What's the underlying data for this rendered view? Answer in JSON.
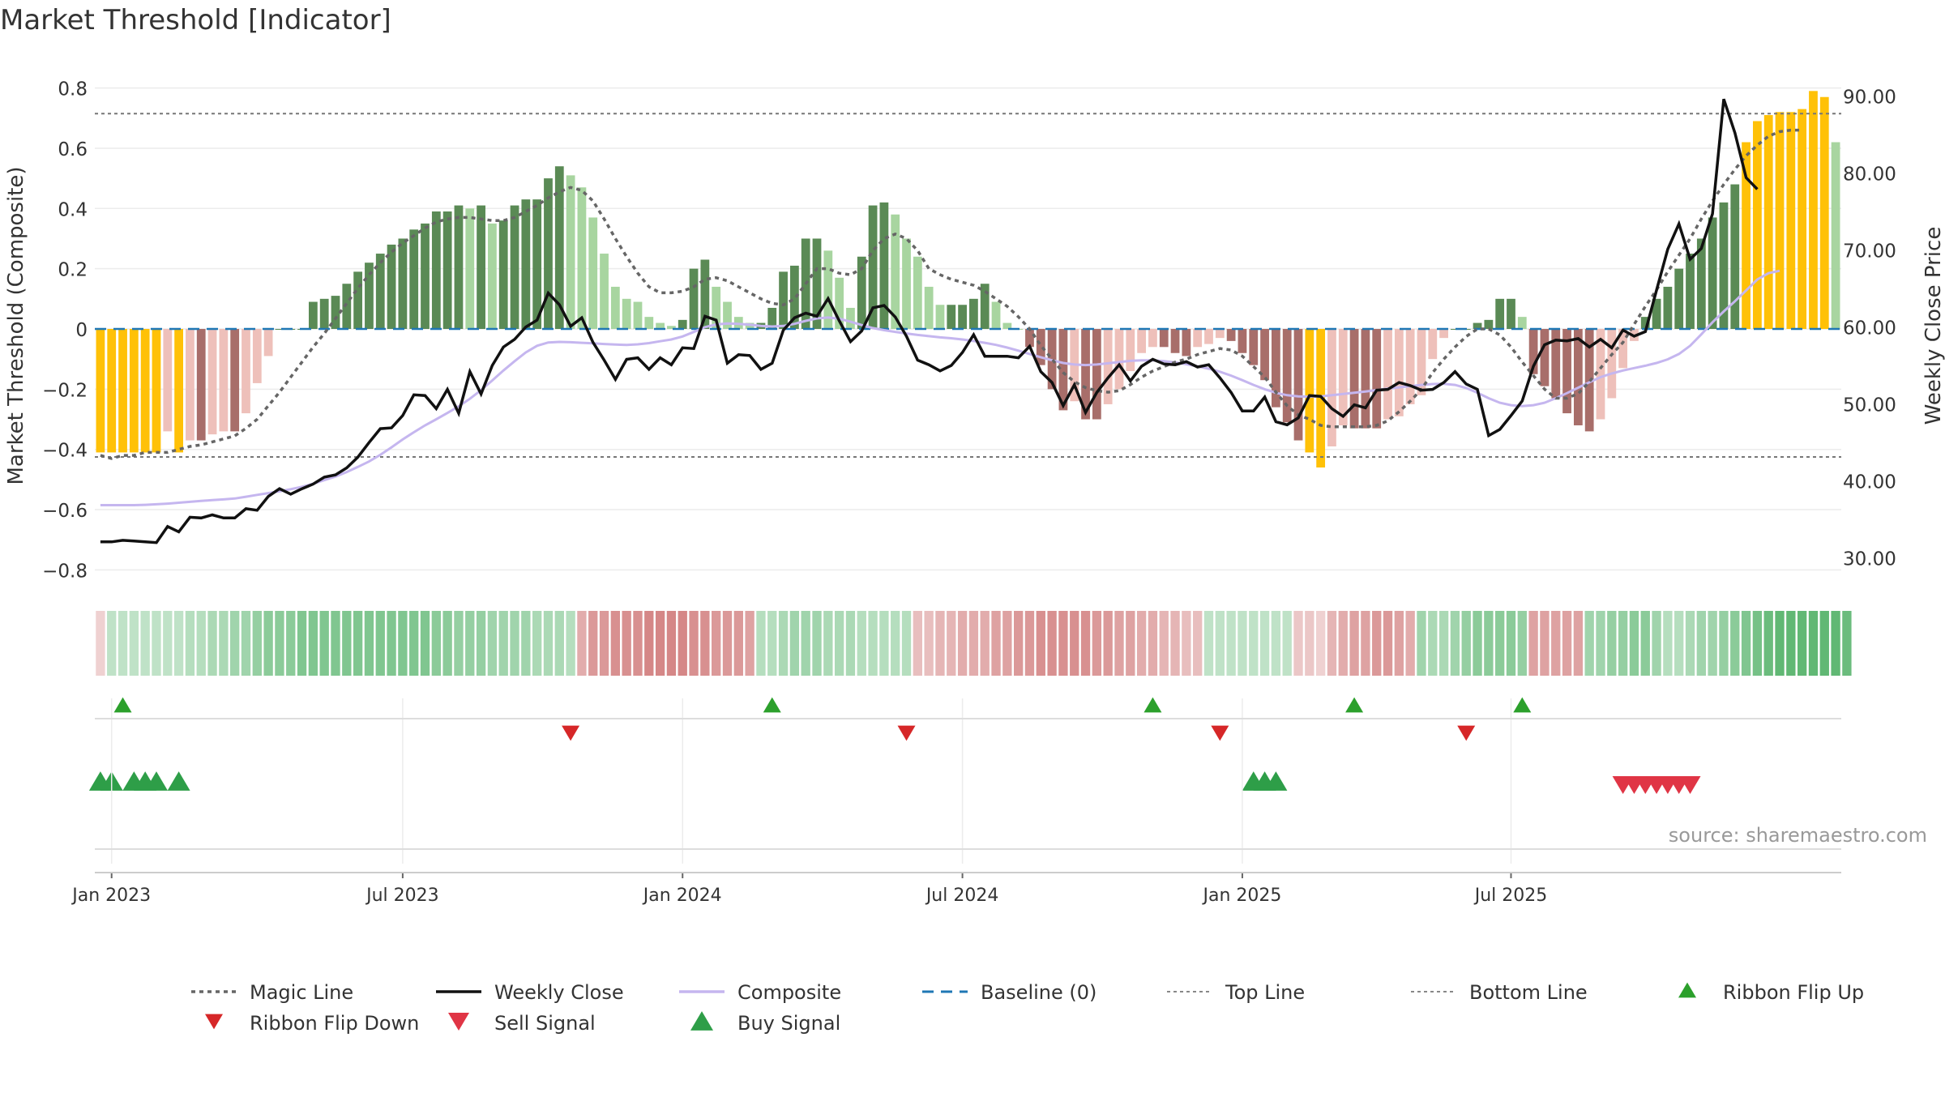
{
  "chart_data": {
    "type": "bar+line",
    "title": "Market Threshold [Indicator]",
    "ylabel_left": "Market Threshold (Composite)",
    "ylabel_right": "Weekly Close Price",
    "ylim_left": [
      -0.85,
      0.85
    ],
    "ylim_right": [
      26.5,
      93.0
    ],
    "yticks_left": [
      "0.8",
      "0.6",
      "0.4",
      "0.2",
      "0",
      "−0.2",
      "−0.4",
      "−0.6",
      "−0.8"
    ],
    "yticks_right": [
      "90.00",
      "80.00",
      "70.00",
      "60.00",
      "50.00",
      "40.00",
      "30.00"
    ],
    "x_ticks": [
      "Jan 2023",
      "Jul 2023",
      "Jan 2024",
      "Jul 2024",
      "Jan 2025",
      "Jul 2025"
    ],
    "source": "source: sharemaestro.com",
    "grid": true,
    "legend_position": "bottom",
    "lines": {
      "top_line": 0.715,
      "bottom_line": -0.425
    },
    "colors": {
      "pos_dark": "#5a8a55",
      "pos_light": "#a8d5a0",
      "neg_dark": "#a86e6a",
      "neg_light": "#eec0ba",
      "extreme": "#ffc107",
      "close": "#111111",
      "composite": "#c5b6ef",
      "magic": "#666666",
      "baseline": "#1f77b4",
      "flip_up": "#2ca02c",
      "flip_down": "#d62728",
      "sell": "#e03545",
      "buy": "#2e9e48"
    },
    "legend": [
      {
        "label": "Magic Line",
        "kind": "dotted",
        "color": "#666666"
      },
      {
        "label": "Weekly Close",
        "kind": "solid",
        "color": "#111111"
      },
      {
        "label": "Composite",
        "kind": "solid",
        "color": "#c5b6ef"
      },
      {
        "label": "Baseline (0)",
        "kind": "dashed",
        "color": "#1f77b4"
      },
      {
        "label": "Top Line",
        "kind": "dotted-light",
        "color": "#888888"
      },
      {
        "label": "Bottom Line",
        "kind": "dotted-light",
        "color": "#888888"
      },
      {
        "label": "Ribbon Flip Up",
        "kind": "tri-up",
        "color": "#2ca02c"
      },
      {
        "label": "Ribbon Flip Down",
        "kind": "tri-down",
        "color": "#d62728"
      },
      {
        "label": "Sell Signal",
        "kind": "tri-down-big",
        "color": "#e03545"
      },
      {
        "label": "Buy Signal",
        "kind": "tri-up-big",
        "color": "#2e9e48"
      }
    ],
    "bars": [
      -0.41,
      -0.41,
      -0.41,
      -0.41,
      -0.41,
      -0.41,
      -0.34,
      -0.41,
      -0.37,
      -0.37,
      -0.35,
      -0.34,
      -0.34,
      -0.28,
      -0.18,
      -0.09,
      0.0,
      0.0,
      0.0,
      0.09,
      0.1,
      0.11,
      0.15,
      0.19,
      0.22,
      0.25,
      0.28,
      0.3,
      0.33,
      0.35,
      0.39,
      0.39,
      0.41,
      0.4,
      0.41,
      0.35,
      0.36,
      0.41,
      0.43,
      0.43,
      0.5,
      0.54,
      0.51,
      0.47,
      0.37,
      0.25,
      0.14,
      0.1,
      0.09,
      0.04,
      0.02,
      0.01,
      0.03,
      0.2,
      0.23,
      0.14,
      0.09,
      0.04,
      0.02,
      0.02,
      0.07,
      0.19,
      0.21,
      0.3,
      0.3,
      0.26,
      0.17,
      0.07,
      0.24,
      0.41,
      0.42,
      0.38,
      0.3,
      0.24,
      0.14,
      0.08,
      0.08,
      0.08,
      0.1,
      0.15,
      0.09,
      0.02,
      0.0,
      -0.06,
      -0.12,
      -0.2,
      -0.27,
      -0.24,
      -0.3,
      -0.3,
      -0.25,
      -0.2,
      -0.14,
      -0.08,
      -0.06,
      -0.06,
      -0.08,
      -0.09,
      -0.06,
      -0.05,
      -0.03,
      -0.04,
      -0.08,
      -0.12,
      -0.17,
      -0.26,
      -0.31,
      -0.37,
      -0.41,
      -0.46,
      -0.39,
      -0.32,
      -0.33,
      -0.33,
      -0.33,
      -0.3,
      -0.29,
      -0.25,
      -0.22,
      -0.1,
      -0.03,
      0.0,
      0.0,
      0.02,
      0.03,
      0.1,
      0.1,
      0.04,
      -0.15,
      -0.19,
      -0.23,
      -0.28,
      -0.32,
      -0.34,
      -0.3,
      -0.23,
      -0.13,
      -0.04,
      0.04,
      0.1,
      0.14,
      0.2,
      0.25,
      0.3,
      0.37,
      0.42,
      0.48,
      0.62,
      0.69,
      0.71,
      0.72,
      0.72,
      0.73,
      0.79,
      0.77,
      0.62
    ],
    "close": [
      32.1,
      32.1,
      32.3,
      32.2,
      32.1,
      32.0,
      34.1,
      33.4,
      35.3,
      35.2,
      35.6,
      35.2,
      35.2,
      36.4,
      36.2,
      38.0,
      39.0,
      38.3,
      39.0,
      39.6,
      40.5,
      40.8,
      41.7,
      43.1,
      45.0,
      46.8,
      46.9,
      48.5,
      51.2,
      51.1,
      49.4,
      51.9,
      48.8,
      54.2,
      51.3,
      55.0,
      57.4,
      58.4,
      60.0,
      60.9,
      64.4,
      62.9,
      60.1,
      61.2,
      58.0,
      55.7,
      53.2,
      55.8,
      56.0,
      54.5,
      56.0,
      55.1,
      57.3,
      57.2,
      61.4,
      60.9,
      55.3,
      56.4,
      56.3,
      54.5,
      55.3,
      59.6,
      61.2,
      61.8,
      61.4,
      63.7,
      60.8,
      58.1,
      59.5,
      62.5,
      62.8,
      61.3,
      58.8,
      55.7,
      55.1,
      54.3,
      55.0,
      56.7,
      59.0,
      56.2,
      56.2,
      56.2,
      56.0,
      57.5,
      54.2,
      52.8,
      49.8,
      52.5,
      48.9,
      51.5,
      53.4,
      55.1,
      53.0,
      54.9,
      55.8,
      55.2,
      55.1,
      55.5,
      54.8,
      55.1,
      53.4,
      51.5,
      49.1,
      49.1,
      50.9,
      47.7,
      47.3,
      48.2,
      51.1,
      51.0,
      49.4,
      48.4,
      49.9,
      49.5,
      51.8,
      51.9,
      52.8,
      52.4,
      51.8,
      51.9,
      52.8,
      54.2,
      52.6,
      51.9,
      45.9,
      46.7,
      48.5,
      50.4,
      54.9,
      57.7,
      58.3,
      58.2,
      58.5,
      57.4,
      58.4,
      57.3,
      59.6,
      58.8,
      59.4,
      64.8,
      70.1,
      73.4,
      68.8,
      70.2,
      74.7,
      89.6,
      85.2,
      79.4,
      77.9
    ],
    "composite": [
      -0.585,
      -0.585,
      -0.585,
      -0.585,
      -0.584,
      -0.582,
      -0.58,
      -0.577,
      -0.574,
      -0.571,
      -0.568,
      -0.566,
      -0.563,
      -0.557,
      -0.551,
      -0.545,
      -0.539,
      -0.532,
      -0.524,
      -0.514,
      -0.502,
      -0.49,
      -0.475,
      -0.458,
      -0.44,
      -0.418,
      -0.393,
      -0.367,
      -0.343,
      -0.32,
      -0.3,
      -0.279,
      -0.257,
      -0.232,
      -0.203,
      -0.171,
      -0.138,
      -0.107,
      -0.078,
      -0.056,
      -0.045,
      -0.043,
      -0.044,
      -0.046,
      -0.048,
      -0.05,
      -0.052,
      -0.053,
      -0.051,
      -0.047,
      -0.041,
      -0.035,
      -0.025,
      -0.01,
      0.006,
      0.015,
      0.018,
      0.017,
      0.014,
      0.01,
      0.008,
      0.01,
      0.017,
      0.027,
      0.035,
      0.038,
      0.034,
      0.024,
      0.013,
      0.003,
      -0.004,
      -0.01,
      -0.015,
      -0.02,
      -0.024,
      -0.028,
      -0.031,
      -0.035,
      -0.04,
      -0.046,
      -0.053,
      -0.062,
      -0.072,
      -0.083,
      -0.094,
      -0.104,
      -0.113,
      -0.118,
      -0.12,
      -0.118,
      -0.114,
      -0.11,
      -0.106,
      -0.104,
      -0.104,
      -0.107,
      -0.111,
      -0.117,
      -0.124,
      -0.132,
      -0.142,
      -0.155,
      -0.17,
      -0.186,
      -0.2,
      -0.212,
      -0.22,
      -0.224,
      -0.225,
      -0.224,
      -0.22,
      -0.216,
      -0.212,
      -0.208,
      -0.203,
      -0.198,
      -0.194,
      -0.19,
      -0.186,
      -0.183,
      -0.182,
      -0.186,
      -0.196,
      -0.212,
      -0.23,
      -0.245,
      -0.253,
      -0.256,
      -0.253,
      -0.245,
      -0.23,
      -0.213,
      -0.195,
      -0.177,
      -0.16,
      -0.148,
      -0.138,
      -0.13,
      -0.122,
      -0.113,
      -0.101,
      -0.083,
      -0.056,
      -0.018,
      0.022,
      0.058,
      0.092,
      0.128,
      0.164,
      0.185,
      0.193
    ],
    "magic": [
      -0.42,
      -0.43,
      -0.42,
      -0.42,
      -0.41,
      -0.41,
      -0.41,
      -0.4,
      -0.39,
      -0.385,
      -0.375,
      -0.365,
      -0.355,
      -0.33,
      -0.3,
      -0.255,
      -0.21,
      -0.16,
      -0.11,
      -0.06,
      -0.015,
      0.035,
      0.085,
      0.135,
      0.18,
      0.22,
      0.255,
      0.285,
      0.31,
      0.335,
      0.355,
      0.365,
      0.37,
      0.37,
      0.365,
      0.36,
      0.36,
      0.37,
      0.39,
      0.41,
      0.435,
      0.455,
      0.47,
      0.46,
      0.425,
      0.365,
      0.3,
      0.24,
      0.185,
      0.14,
      0.12,
      0.12,
      0.125,
      0.14,
      0.165,
      0.17,
      0.16,
      0.14,
      0.12,
      0.1,
      0.085,
      0.08,
      0.1,
      0.15,
      0.2,
      0.2,
      0.185,
      0.18,
      0.2,
      0.26,
      0.3,
      0.315,
      0.3,
      0.26,
      0.2,
      0.18,
      0.165,
      0.155,
      0.145,
      0.125,
      0.1,
      0.075,
      0.04,
      0.0,
      -0.055,
      -0.1,
      -0.145,
      -0.175,
      -0.195,
      -0.205,
      -0.21,
      -0.205,
      -0.185,
      -0.16,
      -0.14,
      -0.125,
      -0.11,
      -0.1,
      -0.085,
      -0.075,
      -0.065,
      -0.07,
      -0.09,
      -0.125,
      -0.16,
      -0.21,
      -0.255,
      -0.285,
      -0.3,
      -0.32,
      -0.325,
      -0.325,
      -0.325,
      -0.325,
      -0.32,
      -0.305,
      -0.275,
      -0.24,
      -0.2,
      -0.145,
      -0.1,
      -0.06,
      -0.025,
      0.0,
      0.0,
      -0.02,
      -0.06,
      -0.11,
      -0.155,
      -0.2,
      -0.23,
      -0.23,
      -0.215,
      -0.175,
      -0.13,
      -0.085,
      -0.045,
      0.015,
      0.075,
      0.13,
      0.19,
      0.245,
      0.3,
      0.365,
      0.425,
      0.48,
      0.53,
      0.575,
      0.61,
      0.64,
      0.655,
      0.66,
      0.66
    ],
    "ribbon": [
      -1,
      1,
      1,
      1,
      1,
      1,
      1,
      1,
      1,
      1,
      1,
      1,
      1,
      1,
      1,
      1,
      1,
      1,
      1,
      1,
      1,
      1,
      1,
      1,
      1,
      1,
      1,
      1,
      1,
      1,
      1,
      1,
      1,
      1,
      1,
      1,
      1,
      1,
      1,
      1,
      1,
      1,
      1,
      -1,
      -1,
      -1,
      -1,
      -1,
      -1,
      -1,
      -1,
      -1,
      -1,
      -1,
      -1,
      -1,
      -1,
      -1,
      -1,
      1,
      1,
      1,
      1,
      1,
      1,
      1,
      1,
      1,
      1,
      1,
      1,
      1,
      1,
      -1,
      -1,
      -1,
      -1,
      -1,
      -1,
      -1,
      -1,
      -1,
      -1,
      -1,
      -1,
      -1,
      -1,
      -1,
      -1,
      -1,
      -1,
      -1,
      -1,
      -1,
      -1,
      -1,
      -1,
      -1,
      -1,
      1,
      1,
      1,
      1,
      1,
      1,
      1,
      1,
      -1,
      -1,
      -1,
      -1,
      -1,
      -1,
      -1,
      -1,
      -1,
      -1,
      -1,
      1,
      1,
      1,
      1,
      1,
      1,
      1,
      1,
      1,
      1,
      -1,
      -1,
      -1,
      -1,
      -1,
      1,
      1,
      1,
      1,
      1,
      1,
      1,
      1,
      1,
      1,
      1,
      1,
      1,
      1,
      1,
      1,
      1,
      1,
      1,
      1,
      1,
      1,
      1,
      1
    ],
    "ribbon_intensity": [
      0.25,
      0.3,
      0.3,
      0.3,
      0.3,
      0.3,
      0.3,
      0.3,
      0.35,
      0.35,
      0.4,
      0.4,
      0.45,
      0.45,
      0.5,
      0.55,
      0.55,
      0.55,
      0.6,
      0.6,
      0.6,
      0.6,
      0.6,
      0.6,
      0.6,
      0.6,
      0.6,
      0.6,
      0.6,
      0.6,
      0.55,
      0.55,
      0.5,
      0.5,
      0.5,
      0.45,
      0.45,
      0.45,
      0.45,
      0.4,
      0.4,
      0.4,
      0.35,
      0.45,
      0.55,
      0.55,
      0.6,
      0.6,
      0.6,
      0.65,
      0.65,
      0.65,
      0.65,
      0.6,
      0.6,
      0.55,
      0.55,
      0.55,
      0.5,
      0.35,
      0.35,
      0.4,
      0.45,
      0.45,
      0.45,
      0.4,
      0.4,
      0.4,
      0.35,
      0.35,
      0.35,
      0.35,
      0.35,
      0.35,
      0.35,
      0.4,
      0.4,
      0.45,
      0.45,
      0.45,
      0.5,
      0.5,
      0.55,
      0.55,
      0.6,
      0.6,
      0.6,
      0.6,
      0.6,
      0.55,
      0.55,
      0.5,
      0.5,
      0.45,
      0.45,
      0.4,
      0.4,
      0.35,
      0.35,
      0.3,
      0.3,
      0.3,
      0.3,
      0.3,
      0.3,
      0.3,
      0.3,
      0.3,
      0.3,
      0.25,
      0.4,
      0.45,
      0.5,
      0.5,
      0.55,
      0.55,
      0.5,
      0.45,
      0.45,
      0.4,
      0.4,
      0.45,
      0.5,
      0.55,
      0.55,
      0.55,
      0.55,
      0.5,
      0.5,
      0.5,
      0.5,
      0.5,
      0.5,
      0.45,
      0.45,
      0.5,
      0.5,
      0.55,
      0.55,
      0.45,
      0.35,
      0.35,
      0.4,
      0.45,
      0.45,
      0.5,
      0.55,
      0.6,
      0.65,
      0.7,
      0.75,
      0.75,
      0.75,
      0.75,
      0.75,
      0.75,
      0.7,
      0.65,
      0.6
    ],
    "flip_up_idx": [
      2,
      60,
      94,
      112,
      127
    ],
    "flip_down_idx": [
      42,
      72,
      100,
      122
    ],
    "buy_idx": [
      0,
      1,
      3,
      4,
      5,
      7,
      103,
      104,
      105
    ],
    "sell_idx": [
      136,
      137,
      138,
      139,
      140,
      141,
      142
    ]
  }
}
